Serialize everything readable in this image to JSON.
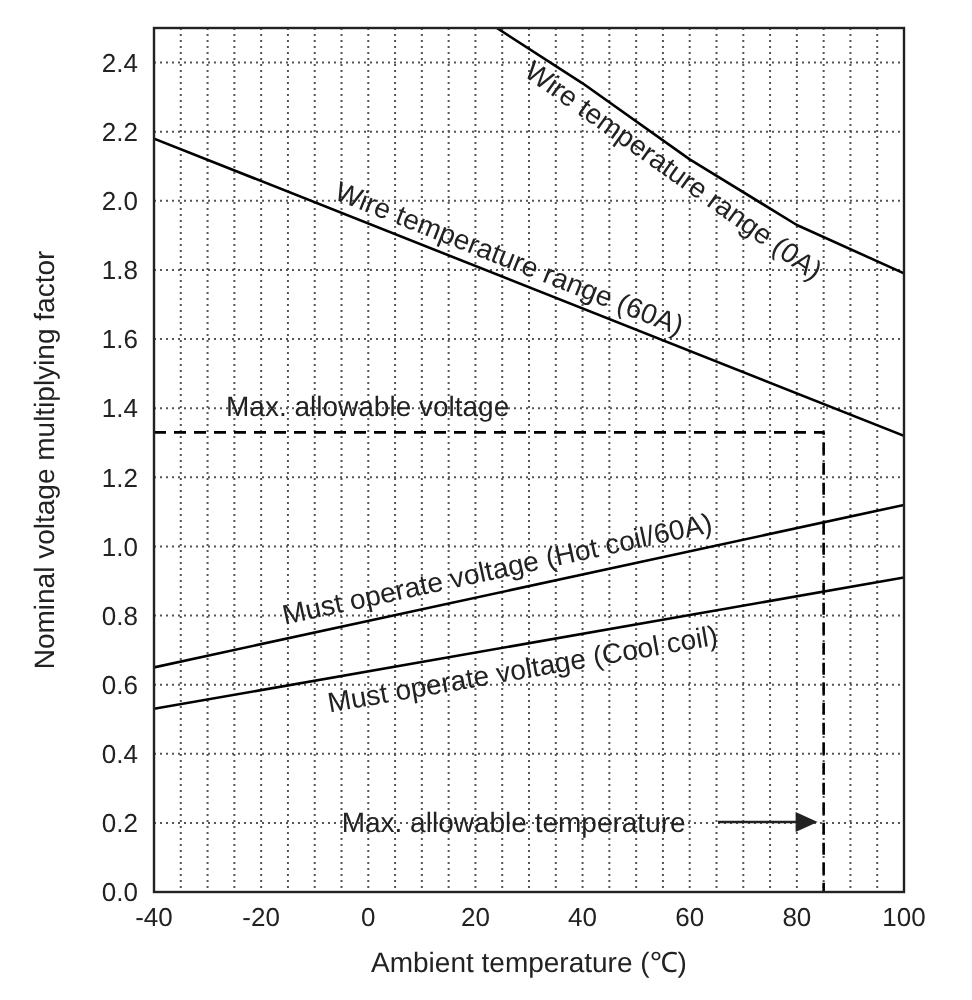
{
  "chart_data": {
    "type": "line",
    "xlabel": "Ambient temperature (℃)",
    "ylabel": "Nominal voltage multiplying factor",
    "xlim": [
      -40,
      100
    ],
    "xticks": [
      -40,
      {
        "value": -35,
        "label": null
      },
      {
        "value": -30,
        "label": null
      },
      {
        "value": -25,
        "label": null
      },
      -20,
      {
        "value": -15,
        "label": null
      },
      {
        "value": -10,
        "label": null
      },
      {
        "value": -5,
        "label": null
      },
      0,
      {
        "value": 5,
        "label": null
      },
      {
        "value": 10,
        "label": null
      },
      {
        "value": 15,
        "label": null
      },
      20,
      {
        "value": 25,
        "label": null
      },
      {
        "value": 30,
        "label": null
      },
      {
        "value": 35,
        "label": null
      },
      40,
      {
        "value": 45,
        "label": null
      },
      {
        "value": 50,
        "label": null
      },
      {
        "value": 55,
        "label": null
      },
      60,
      {
        "value": 65,
        "label": null
      },
      {
        "value": 70,
        "label": null
      },
      {
        "value": 75,
        "label": null
      },
      80,
      {
        "value": 85,
        "label": null
      },
      {
        "value": 90,
        "label": null
      },
      {
        "value": 95,
        "label": null
      },
      100
    ],
    "ylim": [
      0,
      2.5
    ],
    "yticks": [
      {
        "value": 0,
        "label": "0.0"
      },
      0.2,
      0.4,
      0.6,
      0.8,
      {
        "value": 1,
        "label": "1.0"
      },
      1.2,
      1.4,
      1.6,
      1.8,
      {
        "value": 2,
        "label": "2.0"
      },
      2.2,
      2.4
    ],
    "grid": true,
    "legend": false,
    "marker": "none",
    "series": [
      {
        "name": "Wire temperature range (0A)",
        "color": "#000000",
        "x": [
          24,
          40,
          60,
          80,
          100
        ],
        "values": [
          2.5,
          2.34,
          2.12,
          1.93,
          1.79
        ]
      },
      {
        "name": "Wire temperature range (60A)",
        "color": "#000000",
        "x": [
          -40,
          100
        ],
        "values": [
          2.18,
          1.32
        ]
      },
      {
        "name": "Must operate voltage (Hot coil/60A)",
        "color": "#000000",
        "x": [
          -40,
          100
        ],
        "values": [
          0.65,
          1.12
        ]
      },
      {
        "name": "Must operate voltage (Cool coil)",
        "color": "#000000",
        "x": [
          -40,
          100
        ],
        "values": [
          0.53,
          0.91
        ]
      },
      {
        "color": "#000000",
        "line_style": "dashed",
        "x": [
          -40,
          85,
          85
        ],
        "values": [
          1.33,
          1.33,
          0
        ]
      }
    ],
    "annotations": [
      "Max. allowable voltage",
      "Max. allowable temperature"
    ]
  }
}
